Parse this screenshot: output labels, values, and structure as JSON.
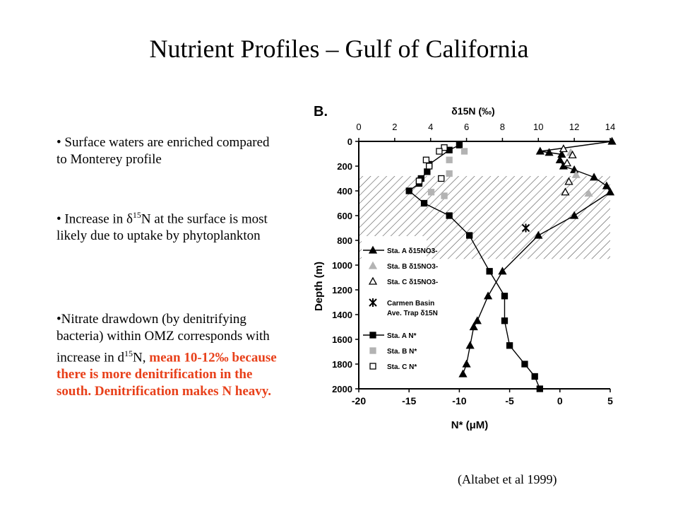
{
  "title": "Nutrient Profiles – Gulf of California",
  "bullets": {
    "b1_text": "Surface waters are enriched compared to Monterey profile",
    "b2_prefix": "Increase in ",
    "b2_delta": "δ",
    "b2_sup": "15",
    "b2_suffix": "N at the surface is most likely due to uptake by phytoplankton",
    "b3_prefix": "Nitrate drawdown (by denitrifying bacteria) within OMZ corresponds with increase in d",
    "b3_sup": "15",
    "b3_mid": "N, ",
    "b3_red": "mean 10-12‰ because there is more denitrification in the south. Denitrification makes N heavy."
  },
  "citation": "(Altabet et al 1999)",
  "chart_data": {
    "type": "line",
    "panel_label": "B.",
    "top_axis": {
      "label": "δ15N (‰)",
      "ticks": [
        0,
        2,
        4,
        6,
        8,
        10,
        12,
        14
      ],
      "range": [
        0,
        14
      ]
    },
    "bottom_axis": {
      "label": "N* (μM)",
      "ticks": [
        -20,
        -15,
        -10,
        -5,
        0,
        5
      ],
      "range": [
        -20,
        5
      ]
    },
    "y_axis": {
      "label": "Depth (m)",
      "ticks": [
        0,
        200,
        400,
        600,
        800,
        1000,
        1200,
        1400,
        1600,
        1800,
        2000
      ],
      "range": [
        0,
        2000
      ],
      "inverted": true
    },
    "shaded_region": {
      "depth_top": 280,
      "depth_bottom": 950
    },
    "legend": {
      "staA_d15": "Sta. A δ15NO3-",
      "staB_d15": "Sta. B δ15NO3-",
      "staC_d15": "Sta. C δ15NO3-",
      "carmen_1": "Carmen Basin",
      "carmen_2": "Ave. Trap δ15N",
      "staA_n": "Sta. A N*",
      "staB_n": "Sta. B N*",
      "staC_n": "Sta. C N*"
    },
    "series": [
      {
        "name": "Sta. A δ15NO3-",
        "axis": "top",
        "marker": "filled-triangle",
        "connected": true,
        "points": [
          [
            14.1,
            0
          ],
          [
            10.1,
            80
          ],
          [
            10.6,
            90
          ],
          [
            11.3,
            105
          ],
          [
            11.2,
            150
          ],
          [
            11.4,
            200
          ],
          [
            12.0,
            230
          ],
          [
            13.1,
            290
          ],
          [
            13.8,
            360
          ],
          [
            14.0,
            410
          ],
          [
            12.0,
            600
          ],
          [
            10.0,
            760
          ],
          [
            8.0,
            1050
          ],
          [
            7.2,
            1250
          ],
          [
            6.6,
            1450
          ],
          [
            6.4,
            1500
          ],
          [
            6.2,
            1650
          ],
          [
            6.0,
            1800
          ],
          [
            5.8,
            1880
          ]
        ]
      },
      {
        "name": "Sta. B δ15NO3-",
        "axis": "top",
        "marker": "gray-triangle",
        "connected": false,
        "points": [
          [
            11.8,
            90
          ],
          [
            12.1,
            270
          ],
          [
            12.8,
            420
          ]
        ]
      },
      {
        "name": "Sta. C δ15NO3-",
        "axis": "top",
        "marker": "open-triangle",
        "connected": false,
        "points": [
          [
            11.4,
            60
          ],
          [
            11.9,
            110
          ],
          [
            11.6,
            175
          ],
          [
            11.7,
            325
          ],
          [
            11.5,
            410
          ]
        ]
      },
      {
        "name": "Carmen Basin Ave. Trap δ15N",
        "axis": "top",
        "marker": "star",
        "connected": false,
        "points": [
          [
            9.3,
            700
          ]
        ]
      },
      {
        "name": "Sta. A N*",
        "axis": "bottom",
        "marker": "filled-square",
        "connected": true,
        "points": [
          [
            -10.0,
            30
          ],
          [
            -11.0,
            70
          ],
          [
            -13.0,
            185
          ],
          [
            -13.2,
            245
          ],
          [
            -13.8,
            300
          ],
          [
            -14.0,
            340
          ],
          [
            -15.0,
            400
          ],
          [
            -13.5,
            500
          ],
          [
            -11.0,
            600
          ],
          [
            -9.0,
            760
          ],
          [
            -7.0,
            1050
          ],
          [
            -5.5,
            1250
          ],
          [
            -5.5,
            1450
          ],
          [
            -5.0,
            1650
          ],
          [
            -3.5,
            1800
          ],
          [
            -2.5,
            1900
          ],
          [
            -2.0,
            2000
          ]
        ]
      },
      {
        "name": "Sta. B N*",
        "axis": "bottom",
        "marker": "gray-square",
        "connected": false,
        "points": [
          [
            -9.5,
            80
          ],
          [
            -11.0,
            150
          ],
          [
            -11.0,
            260
          ],
          [
            -12.8,
            410
          ],
          [
            -11.5,
            440
          ]
        ]
      },
      {
        "name": "Sta. C N*",
        "axis": "bottom",
        "marker": "open-square",
        "connected": false,
        "points": [
          [
            -11.5,
            50
          ],
          [
            -12.0,
            80
          ],
          [
            -13.3,
            150
          ],
          [
            -13.0,
            200
          ],
          [
            -11.8,
            300
          ],
          [
            -14.0,
            320
          ]
        ]
      }
    ]
  }
}
